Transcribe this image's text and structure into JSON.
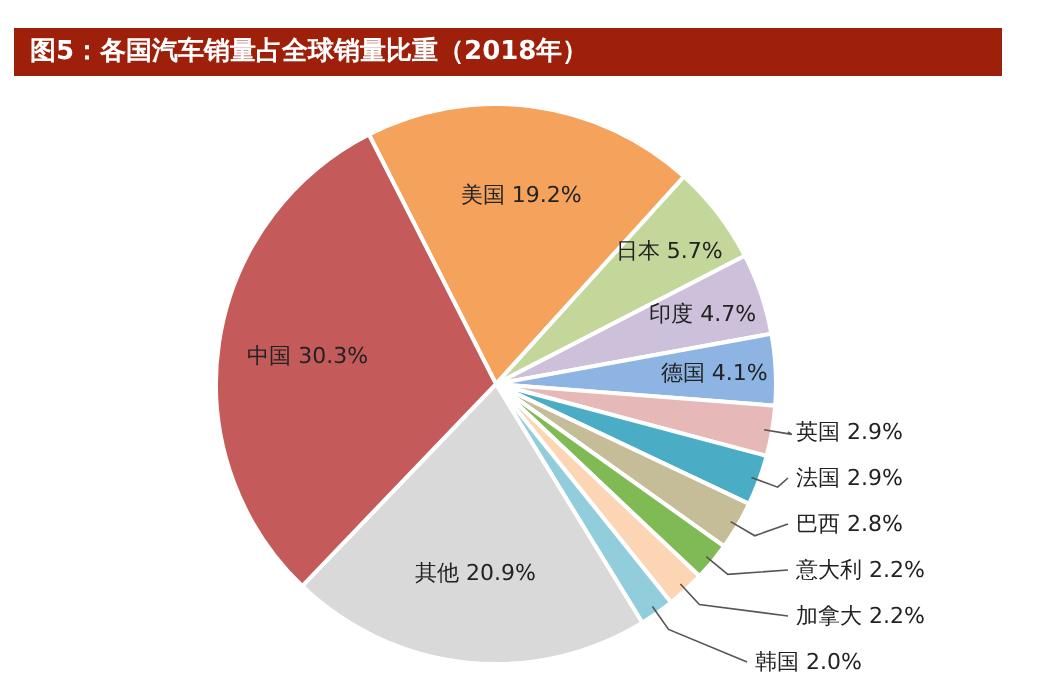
{
  "chart_data": {
    "type": "pie",
    "title": "图5：各国汽车销量占全球销量比重（2018年）",
    "categories": [
      "美国",
      "日本",
      "印度",
      "德国",
      "英国",
      "法国",
      "巴西",
      "意大利",
      "加拿大",
      "韩国",
      "其他",
      "中国"
    ],
    "values": [
      19.2,
      5.7,
      4.7,
      4.1,
      2.9,
      2.9,
      2.8,
      2.2,
      2.2,
      2.0,
      20.9,
      30.3
    ],
    "value_labels": [
      "19.2%",
      "5.7%",
      "4.7%",
      "4.1%",
      "2.9%",
      "2.9%",
      "2.8%",
      "2.2%",
      "2.2%",
      "2.0%",
      "20.9%",
      "30.3%"
    ],
    "colors": [
      "#f5a25d",
      "#c4d79b",
      "#ccc0da",
      "#8db4e2",
      "#e6b8b7",
      "#4bacc6",
      "#c4bd97",
      "#7fba55",
      "#fcd5b4",
      "#92cddc",
      "#d9d9d9",
      "#c55a5a"
    ]
  }
}
